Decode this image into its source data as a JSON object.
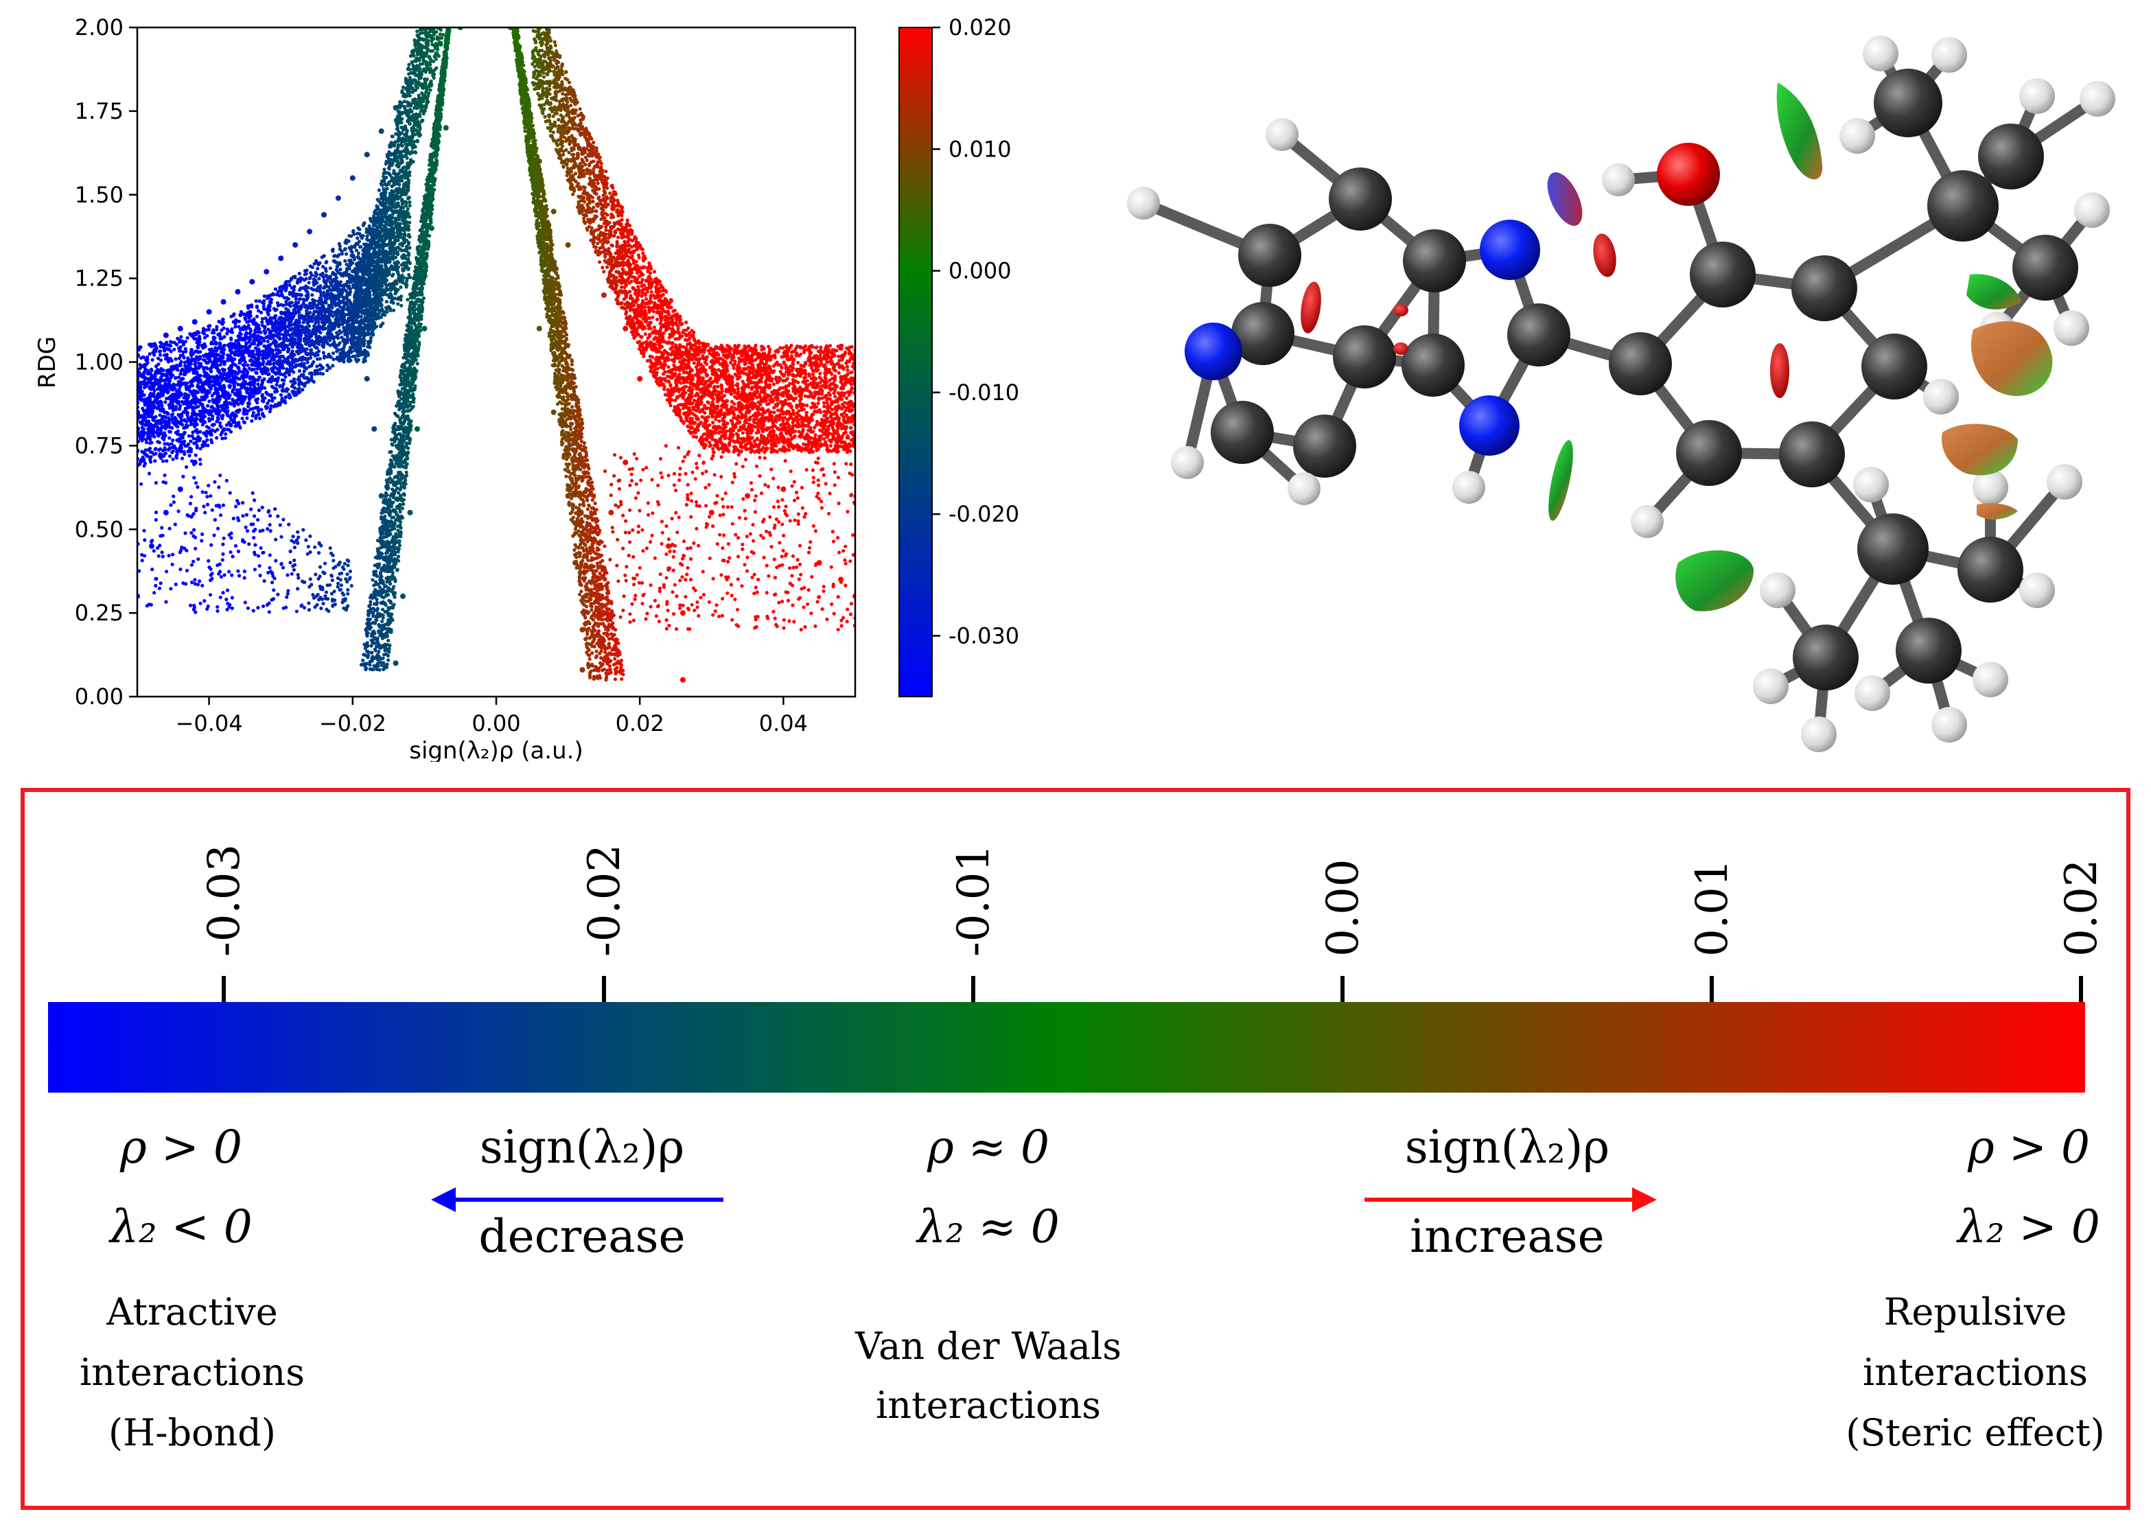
{
  "chart_data": {
    "type": "scatter",
    "title": "",
    "xlabel": "sign(λ₂)ρ (a.u.)",
    "ylabel": "RDG",
    "xlim": [
      -0.05,
      0.05
    ],
    "ylim": [
      0.0,
      2.0
    ],
    "xticks": [
      -0.04,
      -0.02,
      0.0,
      0.02,
      0.04
    ],
    "xtick_labels": [
      "−0.04",
      "−0.02",
      "0.00",
      "0.02",
      "0.04"
    ],
    "yticks": [
      0.0,
      0.25,
      0.5,
      0.75,
      1.0,
      1.25,
      1.5,
      1.75,
      2.0
    ],
    "ytick_labels": [
      "0.00",
      "0.25",
      "0.50",
      "0.75",
      "1.00",
      "1.25",
      "1.50",
      "1.75",
      "2.00"
    ],
    "grid": false,
    "colorbar": {
      "range": [
        -0.035,
        0.02
      ],
      "ticks": [
        0.02,
        0.01,
        0.0,
        -0.01,
        -0.02,
        -0.03
      ],
      "tick_labels": [
        "0.020",
        "0.010",
        "0.000",
        "-0.010",
        "-0.020",
        "-0.030"
      ],
      "colors": [
        "#0000ff",
        "#008000",
        "#ff0000"
      ]
    },
    "series": [
      {
        "color_range": [
          -0.05,
          -0.035
        ],
        "points": [
          [
            -0.05,
            1.02
          ],
          [
            -0.048,
            1.05
          ],
          [
            -0.046,
            1.08
          ],
          [
            -0.044,
            1.1
          ],
          [
            -0.042,
            1.12
          ],
          [
            -0.04,
            1.15
          ],
          [
            -0.038,
            1.18
          ],
          [
            -0.036,
            1.21
          ],
          [
            -0.05,
            0.85
          ],
          [
            -0.045,
            0.9
          ],
          [
            -0.04,
            0.95
          ],
          [
            -0.05,
            0.3
          ],
          [
            -0.048,
            0.45
          ],
          [
            -0.046,
            0.55
          ],
          [
            -0.044,
            0.62
          ],
          [
            -0.042,
            0.7
          ]
        ]
      },
      {
        "color_range": [
          -0.035,
          -0.02
        ],
        "points": [
          [
            -0.034,
            1.24
          ],
          [
            -0.032,
            1.27
          ],
          [
            -0.03,
            1.31
          ],
          [
            -0.028,
            1.35
          ],
          [
            -0.026,
            1.39
          ],
          [
            -0.024,
            1.44
          ],
          [
            -0.022,
            1.49
          ],
          [
            -0.02,
            1.55
          ],
          [
            -0.03,
            1.05
          ],
          [
            -0.025,
            1.1
          ],
          [
            -0.022,
            1.15
          ]
        ]
      },
      {
        "color_range": [
          -0.02,
          -0.003
        ],
        "points": [
          [
            -0.018,
            1.62
          ],
          [
            -0.016,
            1.69
          ],
          [
            -0.014,
            1.76
          ],
          [
            -0.012,
            1.84
          ],
          [
            -0.01,
            1.92
          ],
          [
            -0.008,
            2.0
          ],
          [
            -0.018,
            0.95
          ],
          [
            -0.017,
            0.8
          ],
          [
            -0.016,
            0.6
          ],
          [
            -0.015,
            0.4
          ],
          [
            -0.015,
            0.2
          ],
          [
            -0.014,
            0.1
          ],
          [
            -0.013,
            0.3
          ],
          [
            -0.012,
            0.55
          ],
          [
            -0.011,
            0.8
          ],
          [
            -0.01,
            1.1
          ],
          [
            -0.009,
            1.4
          ],
          [
            -0.007,
            1.7
          ],
          [
            -0.005,
            2.0
          ]
        ]
      },
      {
        "color_range": [
          0.001,
          0.02
        ],
        "points": [
          [
            0.002,
            2.0
          ],
          [
            0.004,
            1.8
          ],
          [
            0.006,
            1.6
          ],
          [
            0.008,
            1.45
          ],
          [
            0.01,
            1.35
          ],
          [
            0.006,
            1.1
          ],
          [
            0.008,
            0.85
          ],
          [
            0.01,
            0.6
          ],
          [
            0.011,
            0.4
          ],
          [
            0.012,
            0.2
          ],
          [
            0.012,
            0.08
          ],
          [
            0.014,
            0.3
          ],
          [
            0.016,
            0.55
          ],
          [
            0.018,
            0.7
          ],
          [
            0.02,
            0.95
          ],
          [
            0.015,
            1.2
          ],
          [
            0.018,
            1.1
          ]
        ]
      },
      {
        "color_range": [
          0.02,
          0.05
        ],
        "points": [
          [
            0.022,
            1.05
          ],
          [
            0.025,
            0.98
          ],
          [
            0.028,
            0.93
          ],
          [
            0.03,
            0.9
          ],
          [
            0.034,
            0.86
          ],
          [
            0.038,
            0.83
          ],
          [
            0.042,
            0.81
          ],
          [
            0.046,
            0.79
          ],
          [
            0.05,
            0.78
          ],
          [
            0.024,
            0.45
          ],
          [
            0.026,
            0.25
          ],
          [
            0.026,
            0.05
          ],
          [
            0.03,
            0.55
          ],
          [
            0.035,
            0.6
          ],
          [
            0.04,
            0.62
          ],
          [
            0.045,
            0.4
          ],
          [
            0.048,
            0.35
          ],
          [
            0.05,
            0.3
          ]
        ]
      }
    ]
  },
  "legend_panel": {
    "tick_labels": [
      "-0.03",
      "-0.02",
      "-0.01",
      "0.00",
      "0.01",
      "0.02"
    ],
    "colors": {
      "low": "#0000ff",
      "mid": "#008000",
      "high": "#ff0000",
      "border": "#ee1c24"
    },
    "left": {
      "line1": "ρ > 0",
      "line2": "λ₂ < 0",
      "desc1": "Atractive",
      "desc2": "interactions",
      "desc3": "(H-bond)"
    },
    "decrease": {
      "top": "sign(λ₂)ρ",
      "bottom": "decrease"
    },
    "middle": {
      "line1": "ρ ≈ 0",
      "line2": "λ₂ ≈ 0",
      "desc1": "Van der Waals",
      "desc2": "interactions"
    },
    "increase": {
      "top": "sign(λ₂)ρ",
      "bottom": "increase"
    },
    "right": {
      "line1": "ρ > 0",
      "line2": "λ₂ > 0",
      "desc1": "Repulsive",
      "desc2": "interactions",
      "desc3": "(Steric effect)"
    }
  },
  "molecule": {
    "atom_colors": {
      "carbon": "#3c3c3c",
      "hydrogen": "#e6e6e6",
      "nitrogen": "#0a1ef0",
      "oxygen": "#e60000"
    }
  }
}
